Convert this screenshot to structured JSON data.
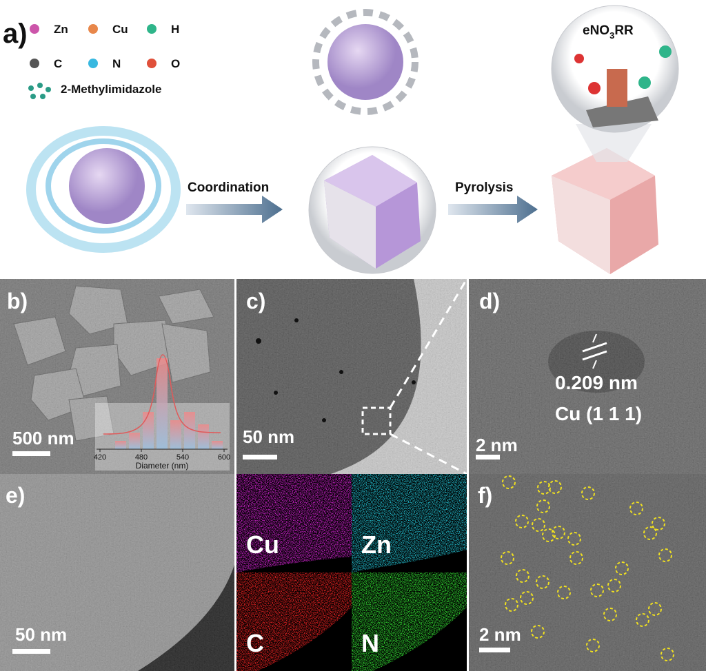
{
  "panel_a": {
    "label": "a)",
    "legend": [
      {
        "symbol": "Zn",
        "color": "#cc55aa"
      },
      {
        "symbol": "Cu",
        "color": "#e8874a"
      },
      {
        "symbol": "H",
        "color": "#2fb58a"
      },
      {
        "symbol": "C",
        "color": "#555555"
      },
      {
        "symbol": "N",
        "color": "#38b8e0"
      },
      {
        "symbol": "O",
        "color": "#e0503a"
      }
    ],
    "ligand": "2-Methylimidazole",
    "step1": "Coordination",
    "step2": "Pyrolysis",
    "reaction": {
      "prefix": "eNO",
      "sub": "3",
      "suffix": "RR"
    }
  },
  "panel_b": {
    "label": "b)",
    "scale_bar": "500 nm",
    "histogram": {
      "type": "histogram",
      "bins": [
        440,
        460,
        480,
        500,
        520,
        540,
        560,
        580,
        600
      ],
      "counts": [
        2,
        4,
        9,
        22,
        7,
        9,
        6,
        2
      ],
      "xlim": [
        415,
        605
      ],
      "xticks": [
        420,
        480,
        540,
        600
      ],
      "xlabel": "Diameter (nm)"
    }
  },
  "panel_c": {
    "label": "c)",
    "scale_bar": "50 nm"
  },
  "panel_d": {
    "label": "d)",
    "spacing": "0.209 nm",
    "plane": "Cu (1 1 1)",
    "scale_bar": "2 nm"
  },
  "panel_e": {
    "label": "e)",
    "scale_bar": "50 nm"
  },
  "eds_maps": [
    {
      "element": "Cu",
      "color": "#c020c0"
    },
    {
      "element": "Zn",
      "color": "#20b0c0"
    },
    {
      "element": "C",
      "color": "#e02020"
    },
    {
      "element": "N",
      "color": "#30d030"
    }
  ],
  "panel_f": {
    "label": "f)",
    "scale_bar": "2 nm"
  }
}
